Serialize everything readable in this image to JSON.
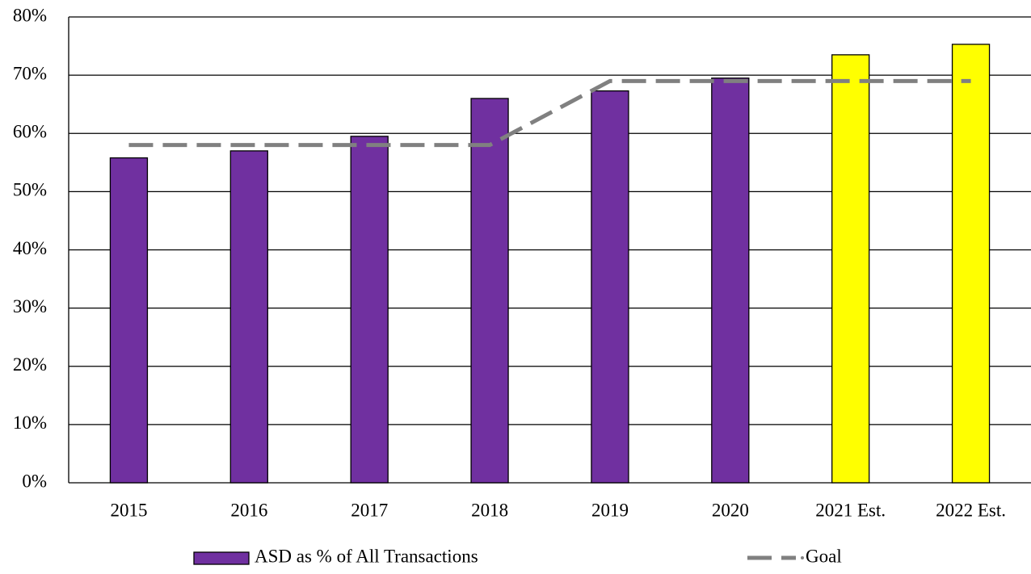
{
  "chart_data": {
    "type": "bar",
    "categories": [
      "2015",
      "2016",
      "2017",
      "2018",
      "2019",
      "2020",
      "2021 Est.",
      "2022 Est."
    ],
    "series": [
      {
        "name": "ASD as % of All Transactions",
        "type": "bar",
        "color": "#7030a0",
        "colors": [
          "#7030a0",
          "#7030a0",
          "#7030a0",
          "#7030a0",
          "#7030a0",
          "#7030a0",
          "#ffff00",
          "#ffff00"
        ],
        "values": [
          55.8,
          57,
          59.5,
          66,
          67.3,
          69.5,
          73.5,
          75.3
        ]
      },
      {
        "name": "Goal",
        "type": "line",
        "color": "#808080",
        "dashed": true,
        "values": [
          58,
          58,
          58,
          58,
          69,
          69,
          69,
          69
        ]
      }
    ],
    "ylim": [
      0,
      80
    ],
    "yticks": [
      {
        "value": 0,
        "label": "0%"
      },
      {
        "value": 10,
        "label": "10%"
      },
      {
        "value": 20,
        "label": "20%"
      },
      {
        "value": 30,
        "label": "30%"
      },
      {
        "value": 40,
        "label": "40%"
      },
      {
        "value": 50,
        "label": "50%"
      },
      {
        "value": 60,
        "label": "60%"
      },
      {
        "value": 70,
        "label": "70%"
      },
      {
        "value": 80,
        "label": "80%"
      }
    ],
    "grid": true,
    "legend": "bottom"
  }
}
